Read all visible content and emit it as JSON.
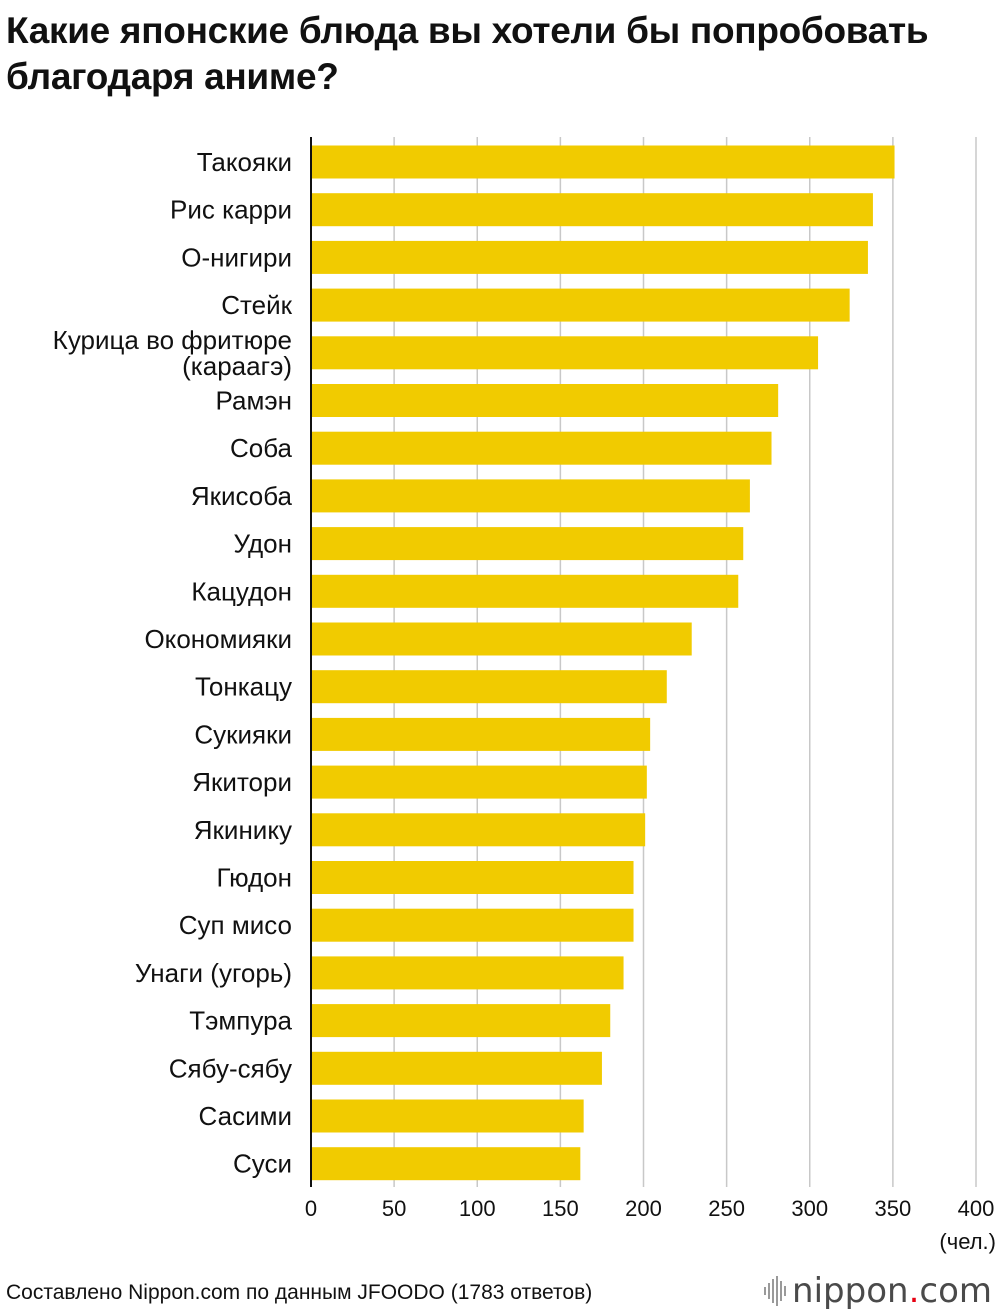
{
  "title": "Какие японские блюда вы хотели бы попробовать благодаря аниме?",
  "footer": {
    "source": "Составлено Nippon.com по данным JFOODO (1783 ответов)",
    "brand_prefix": "nippon",
    "brand_dot": ".",
    "brand_suffix": "com",
    "brand_icon": "nippon-logo-icon"
  },
  "chart_data": {
    "type": "bar",
    "orientation": "horizontal",
    "title": "Какие японские блюда вы хотели бы попробовать благодаря аниме?",
    "categories": [
      [
        "Такояки"
      ],
      [
        "Рис карри"
      ],
      [
        "О-нигири"
      ],
      [
        "Стейк"
      ],
      [
        "Курица во фритюре",
        "(караагэ)"
      ],
      [
        "Рамэн"
      ],
      [
        "Соба"
      ],
      [
        "Якисоба"
      ],
      [
        "Удон"
      ],
      [
        "Кацудон"
      ],
      [
        "Окономияки"
      ],
      [
        "Тонкацу"
      ],
      [
        "Сукияки"
      ],
      [
        "Якитори"
      ],
      [
        "Якинику"
      ],
      [
        "Гюдон"
      ],
      [
        "Суп мисо"
      ],
      [
        "Унаги (угорь)"
      ],
      [
        "Тэмпура"
      ],
      [
        "Сябу-сябу"
      ],
      [
        "Сасими"
      ],
      [
        "Суси"
      ]
    ],
    "values": [
      351,
      338,
      335,
      324,
      305,
      281,
      277,
      264,
      260,
      257,
      229,
      214,
      204,
      202,
      201,
      194,
      194,
      188,
      180,
      175,
      164,
      162
    ],
    "xlim": [
      0,
      400
    ],
    "xticks": [
      0,
      50,
      100,
      150,
      200,
      250,
      300,
      350,
      400
    ],
    "xunit": "(чел.)",
    "grid": true,
    "bar_color": "#f1cb00",
    "grid_color": "#c8c8c8"
  }
}
